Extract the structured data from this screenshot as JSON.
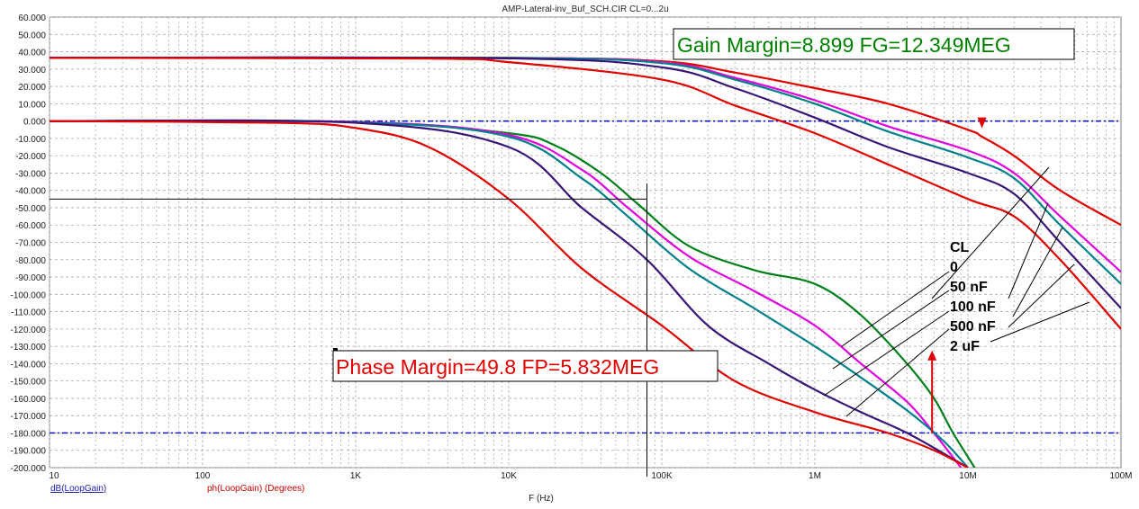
{
  "chart_data": {
    "type": "line",
    "title": "AMP-Lateral-inv_Buf_SCH.CIR CL=0...2u",
    "xlabel": "F (Hz)",
    "x_scale": "log",
    "xlim": [
      10,
      100000000
    ],
    "ylim": [
      -200,
      60
    ],
    "grid": true,
    "x_ticks": [
      "10",
      "100",
      "1K",
      "10K",
      "100K",
      "1M",
      "10M",
      "100M"
    ],
    "y_ticks": [
      "60.000",
      "50.000",
      "40.000",
      "30.000",
      "20.000",
      "10.000",
      "0.000",
      "-10.000",
      "-20.000",
      "-30.000",
      "-40.000",
      "-50.000",
      "-60.000",
      "-70.000",
      "-80.000",
      "-90.000",
      "-100.000",
      "-110.000",
      "-120.000",
      "-130.000",
      "-140.000",
      "-150.000",
      "-160.000",
      "-170.000",
      "-180.000",
      "-190.000",
      "-200.000"
    ],
    "trace_labels": [
      {
        "text": "dB(LoopGain)",
        "color": "#1f1fb0"
      },
      {
        "text": "ph(LoopGain) (Degrees)",
        "color": "#cc0000"
      }
    ],
    "reference_lines": [
      0,
      -180
    ],
    "legend": {
      "title": "CL",
      "entries": [
        "0",
        "50 nF",
        "100 nF",
        "500 nF",
        "2 uF"
      ],
      "placement": "right"
    },
    "annotations": {
      "gain_margin": "Gain Margin=8.899 FG=12.349MEG",
      "phase_margin": "Phase Margin=49.8 FP=5.832MEG"
    },
    "cursor": {
      "x": 80000,
      "y": -45
    },
    "series": [
      {
        "name": "0",
        "kind": "magnitude",
        "color": "#e00000",
        "points": [
          [
            10,
            36.5
          ],
          [
            10000,
            36.5
          ],
          [
            100000,
            34.5
          ],
          [
            300000,
            28
          ],
          [
            1000000,
            19
          ],
          [
            3000000,
            10
          ],
          [
            10000000,
            -5
          ],
          [
            12349000,
            -9
          ],
          [
            20000000,
            -20
          ],
          [
            40000000,
            -40
          ],
          [
            100000000,
            -60
          ]
        ]
      },
      {
        "name": "0",
        "kind": "phase",
        "color": "#00801a",
        "points": [
          [
            10,
            0
          ],
          [
            1000,
            -0.5
          ],
          [
            10000,
            -7
          ],
          [
            20000,
            -14
          ],
          [
            40000,
            -30
          ],
          [
            70000,
            -48
          ],
          [
            150000,
            -72
          ],
          [
            400000,
            -86
          ],
          [
            1000000,
            -94
          ],
          [
            2000000,
            -112
          ],
          [
            4000000,
            -140
          ],
          [
            6000000,
            -160
          ],
          [
            8000000,
            -180
          ],
          [
            12000000,
            -205
          ]
        ]
      },
      {
        "name": "50 nF",
        "kind": "magnitude",
        "color": "#e000e0",
        "points": [
          [
            10,
            36.5
          ],
          [
            10000,
            36.5
          ],
          [
            100000,
            34
          ],
          [
            300000,
            25
          ],
          [
            1000000,
            12
          ],
          [
            3000000,
            -3
          ],
          [
            10000000,
            -17
          ],
          [
            20000000,
            -30
          ],
          [
            40000000,
            -55
          ],
          [
            100000000,
            -87
          ]
        ]
      },
      {
        "name": "50 nF",
        "kind": "phase",
        "color": "#e000e0",
        "points": [
          [
            10,
            0
          ],
          [
            1000,
            -0.5
          ],
          [
            10000,
            -8
          ],
          [
            30000,
            -28
          ],
          [
            60000,
            -50
          ],
          [
            150000,
            -78
          ],
          [
            400000,
            -98
          ],
          [
            1000000,
            -118
          ],
          [
            2000000,
            -140
          ],
          [
            4000000,
            -162
          ],
          [
            6000000,
            -180
          ],
          [
            9000000,
            -200
          ]
        ]
      },
      {
        "name": "100 nF",
        "kind": "magnitude",
        "color": "#00808a",
        "points": [
          [
            10,
            36.5
          ],
          [
            10000,
            36.5
          ],
          [
            100000,
            33.5
          ],
          [
            300000,
            24
          ],
          [
            1000000,
            10
          ],
          [
            3000000,
            -6
          ],
          [
            10000000,
            -21
          ],
          [
            20000000,
            -33
          ],
          [
            40000000,
            -60
          ],
          [
            100000000,
            -94
          ]
        ]
      },
      {
        "name": "100 nF",
        "kind": "phase",
        "color": "#00808a",
        "points": [
          [
            10,
            0
          ],
          [
            1000,
            -0.7
          ],
          [
            10000,
            -9
          ],
          [
            30000,
            -33
          ],
          [
            60000,
            -55
          ],
          [
            150000,
            -85
          ],
          [
            400000,
            -108
          ],
          [
            1000000,
            -130
          ],
          [
            2000000,
            -148
          ],
          [
            4000000,
            -167
          ],
          [
            7000000,
            -185
          ],
          [
            10000000,
            -200
          ]
        ]
      },
      {
        "name": "500 nF",
        "kind": "magnitude",
        "color": "#3a1578",
        "points": [
          [
            10,
            36.5
          ],
          [
            10000,
            36.2
          ],
          [
            100000,
            31
          ],
          [
            300000,
            19
          ],
          [
            1000000,
            2
          ],
          [
            3000000,
            -15
          ],
          [
            10000000,
            -30
          ],
          [
            20000000,
            -42
          ],
          [
            40000000,
            -70
          ],
          [
            100000000,
            -108
          ]
        ]
      },
      {
        "name": "500 nF",
        "kind": "phase",
        "color": "#3a1578",
        "points": [
          [
            10,
            0
          ],
          [
            1000,
            -1
          ],
          [
            10000,
            -15
          ],
          [
            30000,
            -50
          ],
          [
            80000,
            -80
          ],
          [
            200000,
            -118
          ],
          [
            500000,
            -140
          ],
          [
            1000000,
            -155
          ],
          [
            2000000,
            -168
          ],
          [
            4000000,
            -180
          ],
          [
            8000000,
            -195
          ],
          [
            10000000,
            -200
          ]
        ]
      },
      {
        "name": "2 uF",
        "kind": "magnitude",
        "color": "#e00000",
        "points": [
          [
            10,
            36.5
          ],
          [
            3000,
            36
          ],
          [
            10000,
            34
          ],
          [
            100000,
            24
          ],
          [
            300000,
            9
          ],
          [
            1000000,
            -7
          ],
          [
            3000000,
            -25
          ],
          [
            10000000,
            -45
          ],
          [
            20000000,
            -55
          ],
          [
            40000000,
            -80
          ],
          [
            100000000,
            -120
          ]
        ]
      },
      {
        "name": "2 uF",
        "kind": "phase",
        "color": "#e00000",
        "points": [
          [
            10,
            0
          ],
          [
            300,
            -1
          ],
          [
            1000,
            -4
          ],
          [
            3000,
            -15
          ],
          [
            10000,
            -45
          ],
          [
            30000,
            -85
          ],
          [
            100000,
            -118
          ],
          [
            300000,
            -150
          ],
          [
            1000000,
            -168
          ],
          [
            3000000,
            -180
          ],
          [
            6000000,
            -190
          ],
          [
            10000000,
            -200
          ]
        ]
      }
    ]
  }
}
